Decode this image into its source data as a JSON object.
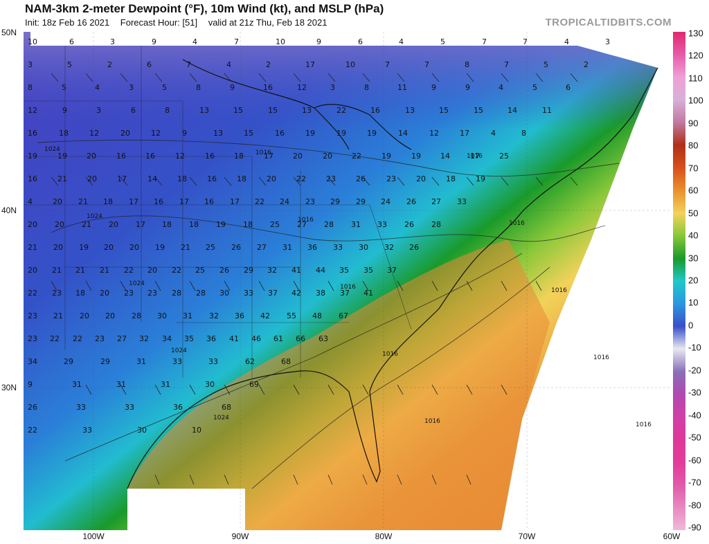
{
  "title": "NAM-3km 2-meter Dewpoint (°F), 10m Wind (kt), and MSLP (hPa)",
  "init_label": "Init: 18z Feb 16 2021",
  "forecast_hour_label": "Forecast Hour: [51]",
  "valid_label": "valid at 21z Thu, Feb 18 2021",
  "brand": "TROPICALTIDBITS.COM",
  "lat_labels": [
    "50N",
    "40N",
    "30N"
  ],
  "lon_labels": [
    "100W",
    "90W",
    "80W",
    "70W",
    "60W"
  ],
  "colorbar_labels": [
    "130",
    "120",
    "110",
    "100",
    "90",
    "80",
    "70",
    "60",
    "50",
    "40",
    "30",
    "20",
    "10",
    "0",
    "-10",
    "-20",
    "-30",
    "-40",
    "-50",
    "-60",
    "-70",
    "-80",
    "-90"
  ],
  "colorbar_colors": [
    "#e0286f",
    "#e85aa8",
    "#eea0d8",
    "#d8b0d8",
    "#c07aa0",
    "#b03018",
    "#d8501c",
    "#e8902e",
    "#f2d25a",
    "#88c83a",
    "#1a9a2a",
    "#20c8c8",
    "#2a98e0",
    "#3a4ec8",
    "#e8e8f0",
    "#8870b8",
    "#b04ab0",
    "#d040a8",
    "#e03898",
    "#e23c9a",
    "#e05aa8",
    "#e88ac0",
    "#f0b8d8"
  ],
  "isobar_labels": [
    "1024",
    "1024",
    "1024",
    "1024",
    "1024",
    "1016",
    "1016",
    "1016",
    "1016",
    "1016",
    "1016",
    "1016",
    "1016",
    "1016",
    "1016"
  ],
  "dewpoint_values": [
    "10",
    "6",
    "3",
    "9",
    "4",
    "7",
    "10",
    "9",
    "6",
    "4",
    "5",
    "7",
    "7",
    "4",
    "3",
    "3",
    "5",
    "2",
    "6",
    "7",
    "4",
    "2",
    "17",
    "10",
    "7",
    "7",
    "8",
    "7",
    "5",
    "2",
    "8",
    "5",
    "4",
    "3",
    "5",
    "8",
    "9",
    "16",
    "12",
    "3",
    "8",
    "11",
    "9",
    "9",
    "4",
    "5",
    "6",
    "12",
    "9",
    "3",
    "6",
    "8",
    "13",
    "15",
    "15",
    "13",
    "22",
    "16",
    "13",
    "15",
    "15",
    "14",
    "11",
    "16",
    "18",
    "12",
    "20",
    "12",
    "9",
    "13",
    "15",
    "16",
    "19",
    "19",
    "19",
    "14",
    "12",
    "17",
    "4",
    "8",
    "19",
    "19",
    "20",
    "16",
    "16",
    "12",
    "16",
    "18",
    "17",
    "20",
    "20",
    "22",
    "19",
    "19",
    "14",
    "17",
    "25",
    "16",
    "21",
    "20",
    "17",
    "14",
    "18",
    "16",
    "18",
    "20",
    "22",
    "23",
    "26",
    "23",
    "20",
    "18",
    "19",
    "4",
    "20",
    "21",
    "18",
    "17",
    "16",
    "17",
    "16",
    "17",
    "22",
    "24",
    "23",
    "29",
    "29",
    "24",
    "26",
    "27",
    "33",
    "20",
    "20",
    "21",
    "20",
    "17",
    "18",
    "18",
    "19",
    "18",
    "25",
    "27",
    "28",
    "31",
    "33",
    "26",
    "28",
    "21",
    "20",
    "19",
    "20",
    "20",
    "19",
    "21",
    "25",
    "26",
    "27",
    "31",
    "36",
    "33",
    "30",
    "32",
    "26",
    "20",
    "21",
    "21",
    "21",
    "22",
    "20",
    "22",
    "25",
    "26",
    "29",
    "32",
    "41",
    "44",
    "35",
    "35",
    "37",
    "22",
    "23",
    "18",
    "20",
    "23",
    "23",
    "28",
    "28",
    "30",
    "33",
    "37",
    "42",
    "38",
    "37",
    "41",
    "23",
    "21",
    "20",
    "20",
    "28",
    "30",
    "31",
    "32",
    "36",
    "42",
    "55",
    "48",
    "67",
    "23",
    "22",
    "22",
    "23",
    "27",
    "32",
    "34",
    "35",
    "36",
    "41",
    "46",
    "61",
    "66",
    "63",
    "34",
    "29",
    "29",
    "31",
    "33",
    "33",
    "62",
    "68",
    "9",
    "31",
    "31",
    "31",
    "30",
    "69",
    "26",
    "33",
    "33",
    "36",
    "68",
    "22",
    "33",
    "30",
    "10"
  ]
}
